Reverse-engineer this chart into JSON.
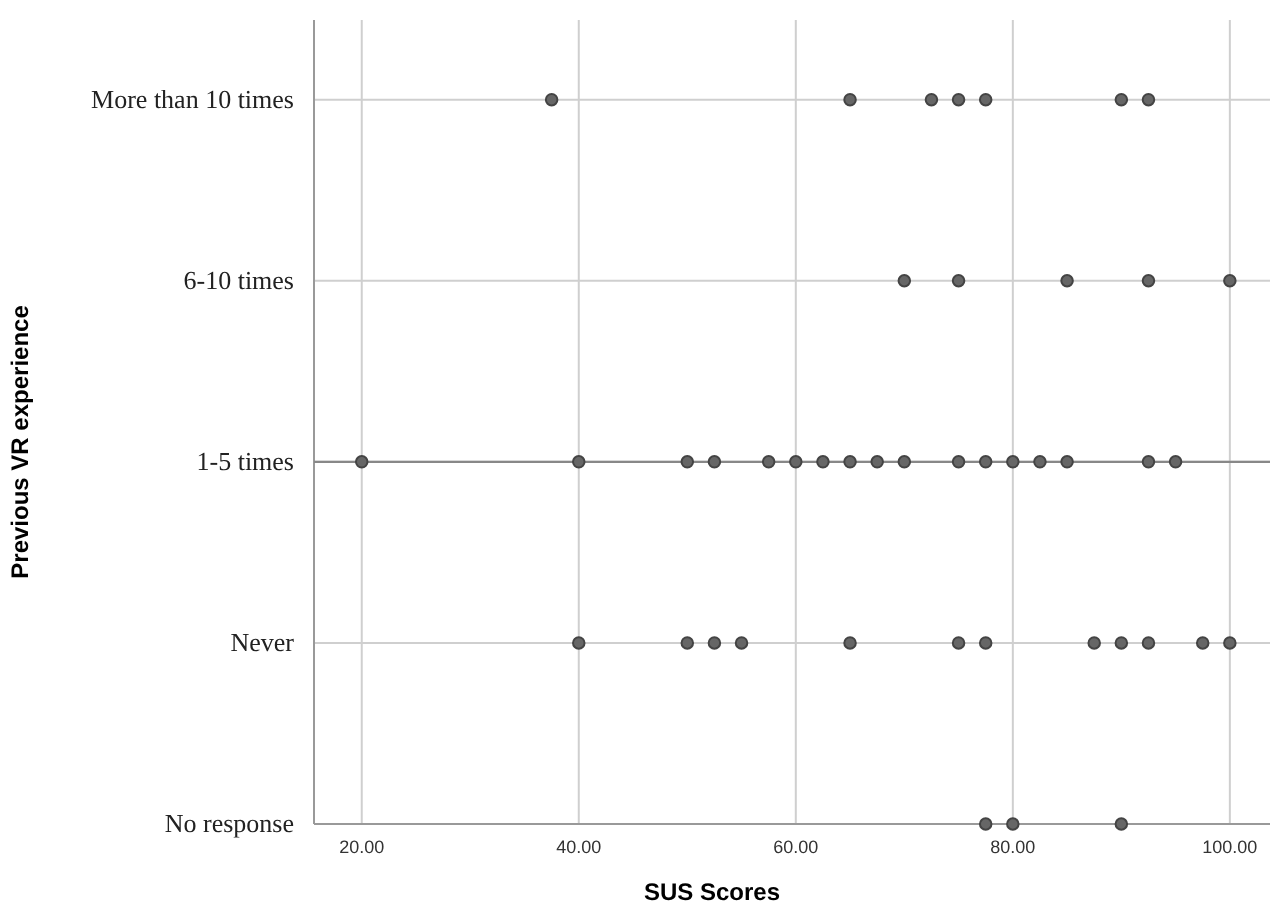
{
  "chart_data": {
    "type": "scatter",
    "xlabel": "SUS Scores",
    "ylabel": "Previous VR experience",
    "orientation": "horizontal",
    "categories": [
      "More than 10 times",
      "6-10 times",
      "1-5 times",
      "Never",
      "No response"
    ],
    "xlim": [
      15.6,
      103.7
    ],
    "xticks": [
      {
        "value": 20,
        "label": "20.00"
      },
      {
        "value": 40,
        "label": "40.00"
      },
      {
        "value": 60,
        "label": "60.00"
      },
      {
        "value": 80,
        "label": "80.00"
      },
      {
        "value": 100,
        "label": "100.00"
      }
    ],
    "grid": true,
    "marker": "circle",
    "series": [
      {
        "color": "#666666",
        "x": [
          "More than 10 times",
          "More than 10 times",
          "More than 10 times",
          "More than 10 times",
          "More than 10 times",
          "More than 10 times",
          "More than 10 times",
          "6-10 times",
          "6-10 times",
          "6-10 times",
          "6-10 times",
          "6-10 times",
          "1-5 times",
          "1-5 times",
          "1-5 times",
          "1-5 times",
          "1-5 times",
          "1-5 times",
          "1-5 times",
          "1-5 times",
          "1-5 times",
          "1-5 times",
          "1-5 times",
          "1-5 times",
          "1-5 times",
          "1-5 times",
          "1-5 times",
          "1-5 times",
          "1-5 times",
          "Never",
          "Never",
          "Never",
          "Never",
          "Never",
          "Never",
          "Never",
          "Never",
          "Never",
          "Never",
          "Never",
          "Never",
          "No response",
          "No response",
          "No response"
        ],
        "values": [
          37.5,
          65,
          72.5,
          75,
          77.5,
          90,
          92.5,
          70,
          75,
          85,
          92.5,
          100,
          20,
          40,
          50,
          52.5,
          57.5,
          60,
          62.5,
          65,
          67.5,
          70,
          75,
          77.5,
          80,
          82.5,
          85,
          92.5,
          95,
          40,
          50,
          52.5,
          55,
          65,
          75,
          77.5,
          87.5,
          90,
          92.5,
          97.5,
          100,
          77.5,
          80,
          90
        ]
      },
      {
        "type": "line",
        "marker": "none",
        "color": "#888888",
        "x": [
          "1-5 times",
          "1-5 times"
        ],
        "values": [
          15.6,
          103.7
        ]
      }
    ]
  }
}
